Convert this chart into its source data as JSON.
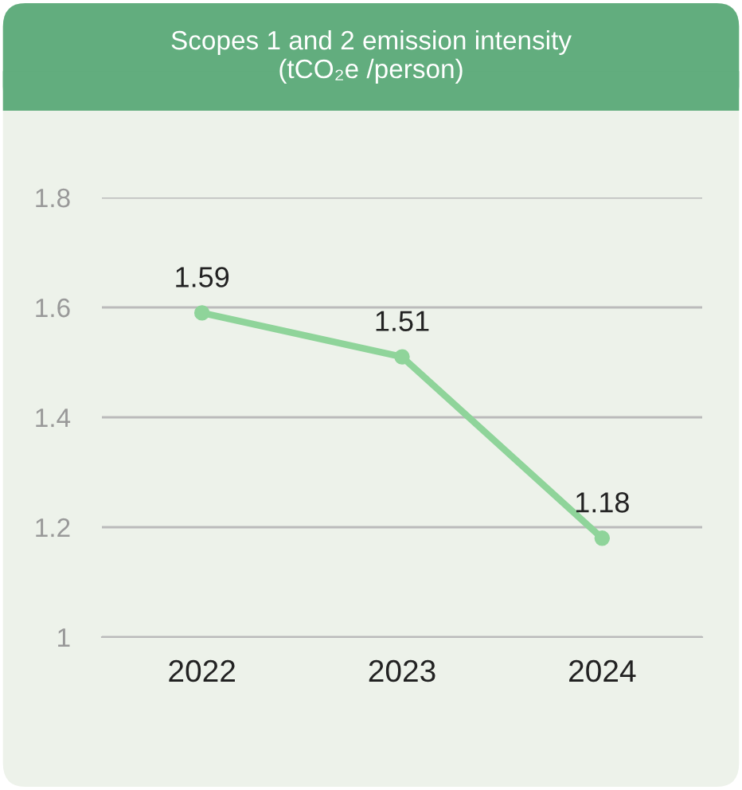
{
  "chart_data": {
    "type": "line",
    "title": "Scopes 1 and 2 emission intensity\n(tCO₂e /person)",
    "categories": [
      "2022",
      "2023",
      "2024"
    ],
    "series": [
      {
        "color": "#8fd49a",
        "values": [
          1.59,
          1.51,
          1.18
        ]
      }
    ],
    "ylim": [
      1,
      1.8
    ],
    "yticks": [
      1,
      1.2,
      1.4,
      1.6,
      1.8
    ],
    "grid": "y",
    "marker": "circle",
    "line_style": "solid",
    "data_labels": true
  }
}
